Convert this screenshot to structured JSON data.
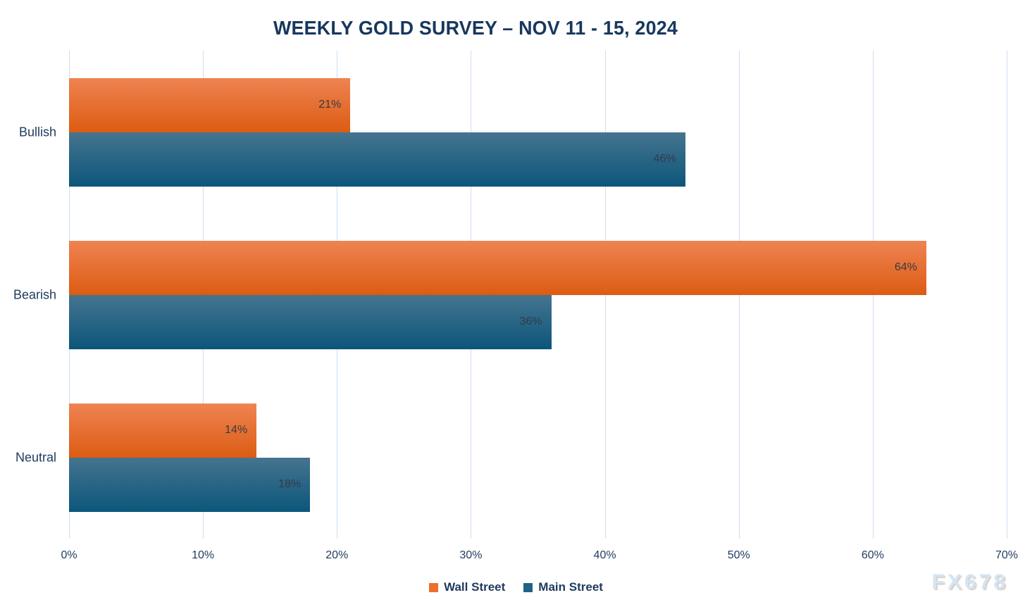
{
  "title": "WEEKLY GOLD SURVEY – NOV 11 - 15, 2024",
  "watermark": "FX678",
  "colors": {
    "wall_street_top": "#EF8352",
    "wall_street_bottom": "#DC5C12",
    "main_street_top": "#45748F",
    "main_street_bottom": "#0C567B",
    "legend_wall_street": "#ED6E2D",
    "legend_main_street": "#21628A",
    "title_text": "#17375E",
    "axis_text": "#1F3A5F",
    "data_label_text": "#333B46",
    "gridline": "#CBDFF2",
    "watermark_text": "#D3E5F5"
  },
  "chart_data": {
    "type": "bar",
    "orientation": "horizontal",
    "title": "WEEKLY GOLD SURVEY – NOV 11 - 15, 2024",
    "categories": [
      "Bullish",
      "Bearish",
      "Neutral"
    ],
    "series": [
      {
        "name": "Wall Street",
        "values": [
          21,
          64,
          14
        ]
      },
      {
        "name": "Main Street",
        "values": [
          46,
          36,
          18
        ]
      }
    ],
    "value_suffix": "%",
    "xlim": [
      0,
      70
    ],
    "xticks": [
      "0%",
      "10%",
      "20%",
      "30%",
      "40%",
      "50%",
      "60%",
      "70%"
    ],
    "grid": "vertical",
    "legend_position": "bottom",
    "data_labels": {
      "Bullish": {
        "Wall Street": "21%",
        "Main Street": "46%"
      },
      "Bearish": {
        "Wall Street": "64%",
        "Main Street": "36%"
      },
      "Neutral": {
        "Wall Street": "14%",
        "Main Street": "18%"
      }
    }
  }
}
